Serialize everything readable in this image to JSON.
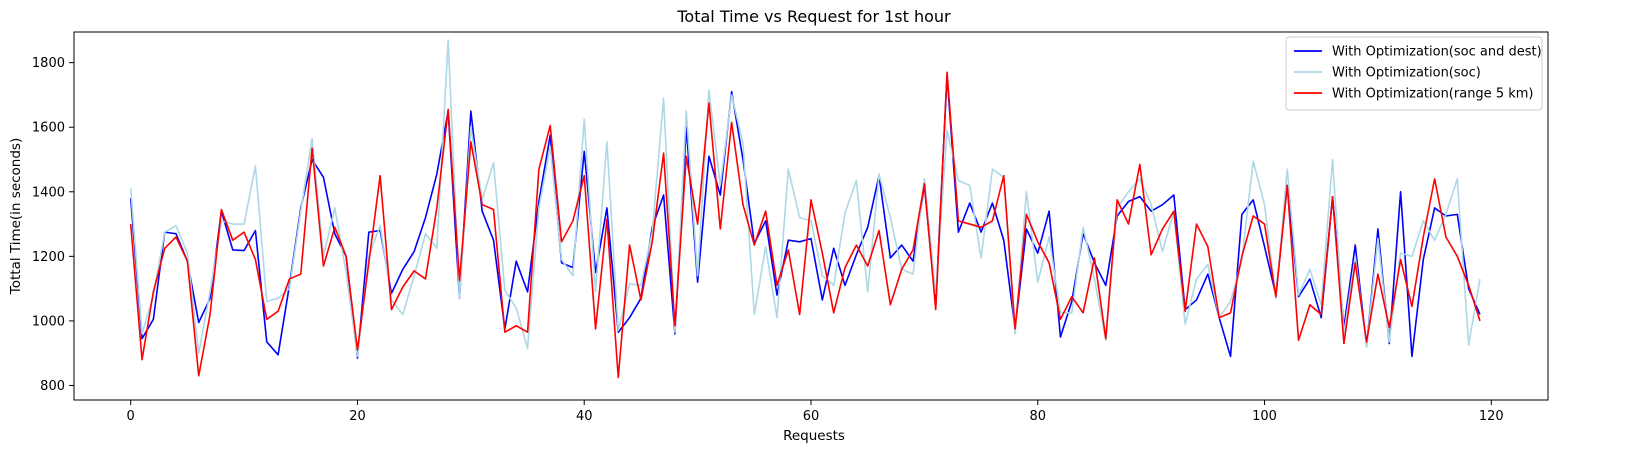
{
  "chart_data": {
    "type": "line",
    "title": "Total Time vs Request for 1st hour",
    "xlabel": "Requests",
    "ylabel": "Tottal Time(in seconds)",
    "xlim": [
      -5,
      125
    ],
    "ylim": [
      755,
      1895
    ],
    "xticks": [
      0,
      20,
      40,
      60,
      80,
      100,
      120
    ],
    "yticks": [
      800,
      1000,
      1200,
      1400,
      1600,
      1800
    ],
    "grid": false,
    "legend_position": "top-right",
    "series": [
      {
        "name": "With Optimization(soc and dest)",
        "color": "#0000ff",
        "values": [
          1380,
          945,
          1005,
          1275,
          1270,
          1185,
          995,
          1070,
          1340,
          1220,
          1218,
          1280,
          935,
          895,
          1110,
          1350,
          1500,
          1445,
          1270,
          1200,
          885,
          1275,
          1280,
          1085,
          1160,
          1215,
          1320,
          1455,
          1650,
          1070,
          1650,
          1340,
          1250,
          975,
          1185,
          1090,
          1370,
          1575,
          1180,
          1165,
          1525,
          1150,
          1350,
          965,
          1010,
          1070,
          1290,
          1390,
          960,
          1600,
          1120,
          1510,
          1390,
          1710,
          1500,
          1240,
          1310,
          1080,
          1250,
          1245,
          1255,
          1065,
          1225,
          1110,
          1205,
          1290,
          1450,
          1195,
          1235,
          1185,
          1420,
          1050,
          1760,
          1275,
          1365,
          1275,
          1365,
          1250,
          975,
          1285,
          1210,
          1340,
          950,
          1060,
          1270,
          1180,
          1110,
          1325,
          1370,
          1385,
          1340,
          1360,
          1390,
          1035,
          1065,
          1145,
          1010,
          890,
          1330,
          1375,
          1230,
          1080,
          1420,
          1075,
          1130,
          1010,
          1385,
          980,
          1235,
          920,
          1285,
          930,
          1400,
          890,
          1190,
          1350,
          1325,
          1330,
          1100,
          1020
        ]
      },
      {
        "name": "With Optimization(soc)",
        "color": "#add8e6",
        "values": [
          1410,
          960,
          1080,
          1275,
          1295,
          1210,
          900,
          1090,
          1310,
          1300,
          1300,
          1480,
          1060,
          1070,
          1100,
          1340,
          1565,
          1200,
          1350,
          1150,
          890,
          1200,
          1295,
          1065,
          1020,
          1140,
          1270,
          1225,
          1870,
          1070,
          1600,
          1375,
          1490,
          1095,
          1040,
          915,
          1350,
          1540,
          1190,
          1140,
          1625,
          1090,
          1555,
          970,
          1115,
          1110,
          1275,
          1690,
          965,
          1650,
          1140,
          1715,
          1420,
          1700,
          1550,
          1020,
          1230,
          1010,
          1470,
          1320,
          1310,
          1140,
          1110,
          1335,
          1435,
          1090,
          1455,
          1320,
          1160,
          1145,
          1440,
          1085,
          1590,
          1435,
          1420,
          1195,
          1470,
          1445,
          960,
          1400,
          1120,
          1260,
          1025,
          1025,
          1290,
          1130,
          940,
          1350,
          1400,
          1440,
          1360,
          1215,
          1340,
          990,
          1130,
          1175,
          1010,
          1060,
          1190,
          1495,
          1360,
          1070,
          1470,
          1080,
          1160,
          1050,
          1500,
          960,
          1200,
          920,
          1255,
          935,
          1210,
          1200,
          1310,
          1250,
          1330,
          1440,
          925,
          1130
        ]
      },
      {
        "name": "With Optimization(range 5 km)",
        "color": "#ff0000",
        "values": [
          1300,
          880,
          1090,
          1225,
          1260,
          1185,
          830,
          1020,
          1345,
          1250,
          1275,
          1190,
          1005,
          1030,
          1130,
          1145,
          1535,
          1170,
          1290,
          1200,
          910,
          1180,
          1450,
          1035,
          1105,
          1155,
          1130,
          1350,
          1655,
          1125,
          1555,
          1360,
          1345,
          965,
          985,
          965,
          1470,
          1605,
          1245,
          1310,
          1450,
          975,
          1315,
          825,
          1235,
          1065,
          1245,
          1520,
          985,
          1510,
          1300,
          1675,
          1285,
          1615,
          1360,
          1235,
          1340,
          1110,
          1220,
          1020,
          1375,
          1210,
          1025,
          1165,
          1235,
          1170,
          1280,
          1050,
          1160,
          1220,
          1425,
          1035,
          1770,
          1310,
          1300,
          1290,
          1310,
          1450,
          975,
          1330,
          1245,
          1180,
          1005,
          1075,
          1025,
          1195,
          945,
          1375,
          1300,
          1485,
          1205,
          1285,
          1340,
          1030,
          1300,
          1230,
          1010,
          1025,
          1200,
          1325,
          1300,
          1075,
          1420,
          940,
          1050,
          1020,
          1385,
          930,
          1180,
          935,
          1145,
          980,
          1190,
          1045,
          1260,
          1440,
          1260,
          1200,
          1110,
          1000
        ]
      }
    ]
  }
}
